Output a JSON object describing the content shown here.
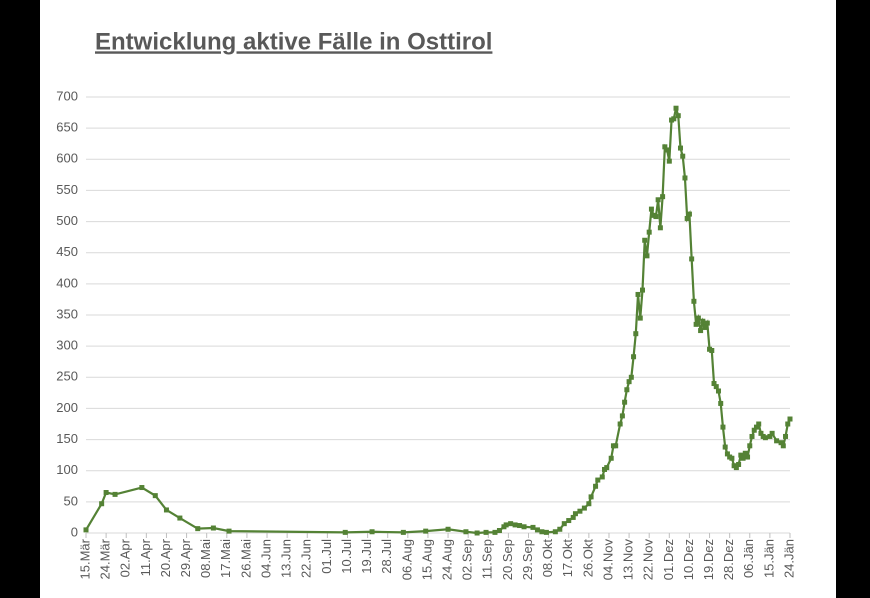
{
  "chart_data": {
    "type": "line",
    "title": "Entwicklung aktive Fälle in Osttirol",
    "xlim": [
      0,
      315
    ],
    "xticks": [
      {
        "value": 0,
        "label": "15.Mär"
      },
      {
        "value": 9,
        "label": "24.Mär"
      },
      {
        "value": 18,
        "label": "02.Apr"
      },
      {
        "value": 27,
        "label": "11.Apr"
      },
      {
        "value": 36,
        "label": "20.Apr"
      },
      {
        "value": 45,
        "label": "29.Apr"
      },
      {
        "value": 54,
        "label": "08.Mai"
      },
      {
        "value": 63,
        "label": "17.Mai"
      },
      {
        "value": 72,
        "label": "26.Mai"
      },
      {
        "value": 81,
        "label": "04.Jun"
      },
      {
        "value": 90,
        "label": "13.Jun"
      },
      {
        "value": 99,
        "label": "22.Jun"
      },
      {
        "value": 108,
        "label": "01.Jul"
      },
      {
        "value": 117,
        "label": "10.Jul"
      },
      {
        "value": 126,
        "label": "19.Jul"
      },
      {
        "value": 135,
        "label": "28.Jul"
      },
      {
        "value": 144,
        "label": "06.Aug"
      },
      {
        "value": 153,
        "label": "15.Aug"
      },
      {
        "value": 162,
        "label": "24.Aug"
      },
      {
        "value": 171,
        "label": "02.Sep"
      },
      {
        "value": 180,
        "label": "11.Sep"
      },
      {
        "value": 189,
        "label": "20.Sep"
      },
      {
        "value": 198,
        "label": "29.Sep"
      },
      {
        "value": 207,
        "label": "08.Okt"
      },
      {
        "value": 216,
        "label": "17.Okt"
      },
      {
        "value": 225,
        "label": "26.Okt"
      },
      {
        "value": 234,
        "label": "04.Nov"
      },
      {
        "value": 243,
        "label": "13.Nov"
      },
      {
        "value": 252,
        "label": "22.Nov"
      },
      {
        "value": 261,
        "label": "01.Dez"
      },
      {
        "value": 270,
        "label": "10.Dez"
      },
      {
        "value": 279,
        "label": "19.Dez"
      },
      {
        "value": 288,
        "label": "28.Dez"
      },
      {
        "value": 297,
        "label": "06.Jän"
      },
      {
        "value": 306,
        "label": "15.Jän"
      },
      {
        "value": 315,
        "label": "24.Jän"
      }
    ],
    "ylim": [
      0,
      700
    ],
    "yticks": [
      0,
      50,
      100,
      150,
      200,
      250,
      300,
      350,
      400,
      450,
      500,
      550,
      600,
      650,
      700
    ],
    "grid": true,
    "color": "#548235",
    "x": [
      0,
      7,
      9,
      13,
      25,
      31,
      36,
      42,
      50,
      57,
      64,
      116,
      128,
      142,
      152,
      162,
      170,
      175,
      179,
      183,
      185,
      187,
      188,
      190,
      192,
      194,
      196,
      200,
      202,
      204,
      206,
      210,
      212,
      214,
      216,
      218,
      219,
      221,
      223,
      225,
      226,
      228,
      229,
      231,
      232,
      233,
      235,
      236,
      237,
      239,
      240,
      241,
      242,
      243,
      244,
      245,
      246,
      247,
      248,
      249,
      250,
      251,
      252,
      253,
      254,
      255,
      256,
      257,
      258,
      259,
      260,
      261,
      262,
      263,
      264,
      265,
      266,
      267,
      268,
      269,
      270,
      271,
      272,
      273,
      274,
      275,
      276,
      277,
      278,
      279,
      280,
      281,
      282,
      283,
      284,
      285,
      286,
      287,
      288,
      289,
      290,
      291,
      292,
      293,
      294,
      295,
      296,
      297,
      298,
      299,
      300,
      301,
      302,
      303,
      304,
      306,
      307,
      309,
      311,
      312,
      313,
      314,
      315
    ],
    "values": [
      5,
      47,
      65,
      62,
      73,
      60,
      37,
      24,
      7,
      8,
      3,
      1,
      2,
      1,
      3,
      6,
      2,
      0,
      1,
      1,
      4,
      10,
      13,
      15,
      13,
      12,
      10,
      9,
      5,
      2,
      1,
      2,
      6,
      15,
      20,
      25,
      31,
      35,
      40,
      47,
      58,
      75,
      85,
      90,
      102,
      105,
      120,
      140,
      140,
      175,
      188,
      210,
      230,
      243,
      250,
      283,
      320,
      383,
      345,
      390,
      470,
      445,
      483,
      520,
      510,
      508,
      535,
      490,
      540,
      620,
      615,
      597,
      663,
      665,
      682,
      670,
      618,
      605,
      570,
      505,
      512,
      440,
      372,
      335,
      345,
      325,
      340,
      330,
      337,
      295,
      293,
      240,
      235,
      228,
      208,
      170,
      138,
      127,
      122,
      120,
      108,
      105,
      110,
      125,
      120,
      128,
      122,
      140,
      155,
      165,
      170,
      175,
      160,
      155,
      153,
      155,
      160,
      148,
      145,
      140,
      155,
      175,
      183
    ]
  }
}
